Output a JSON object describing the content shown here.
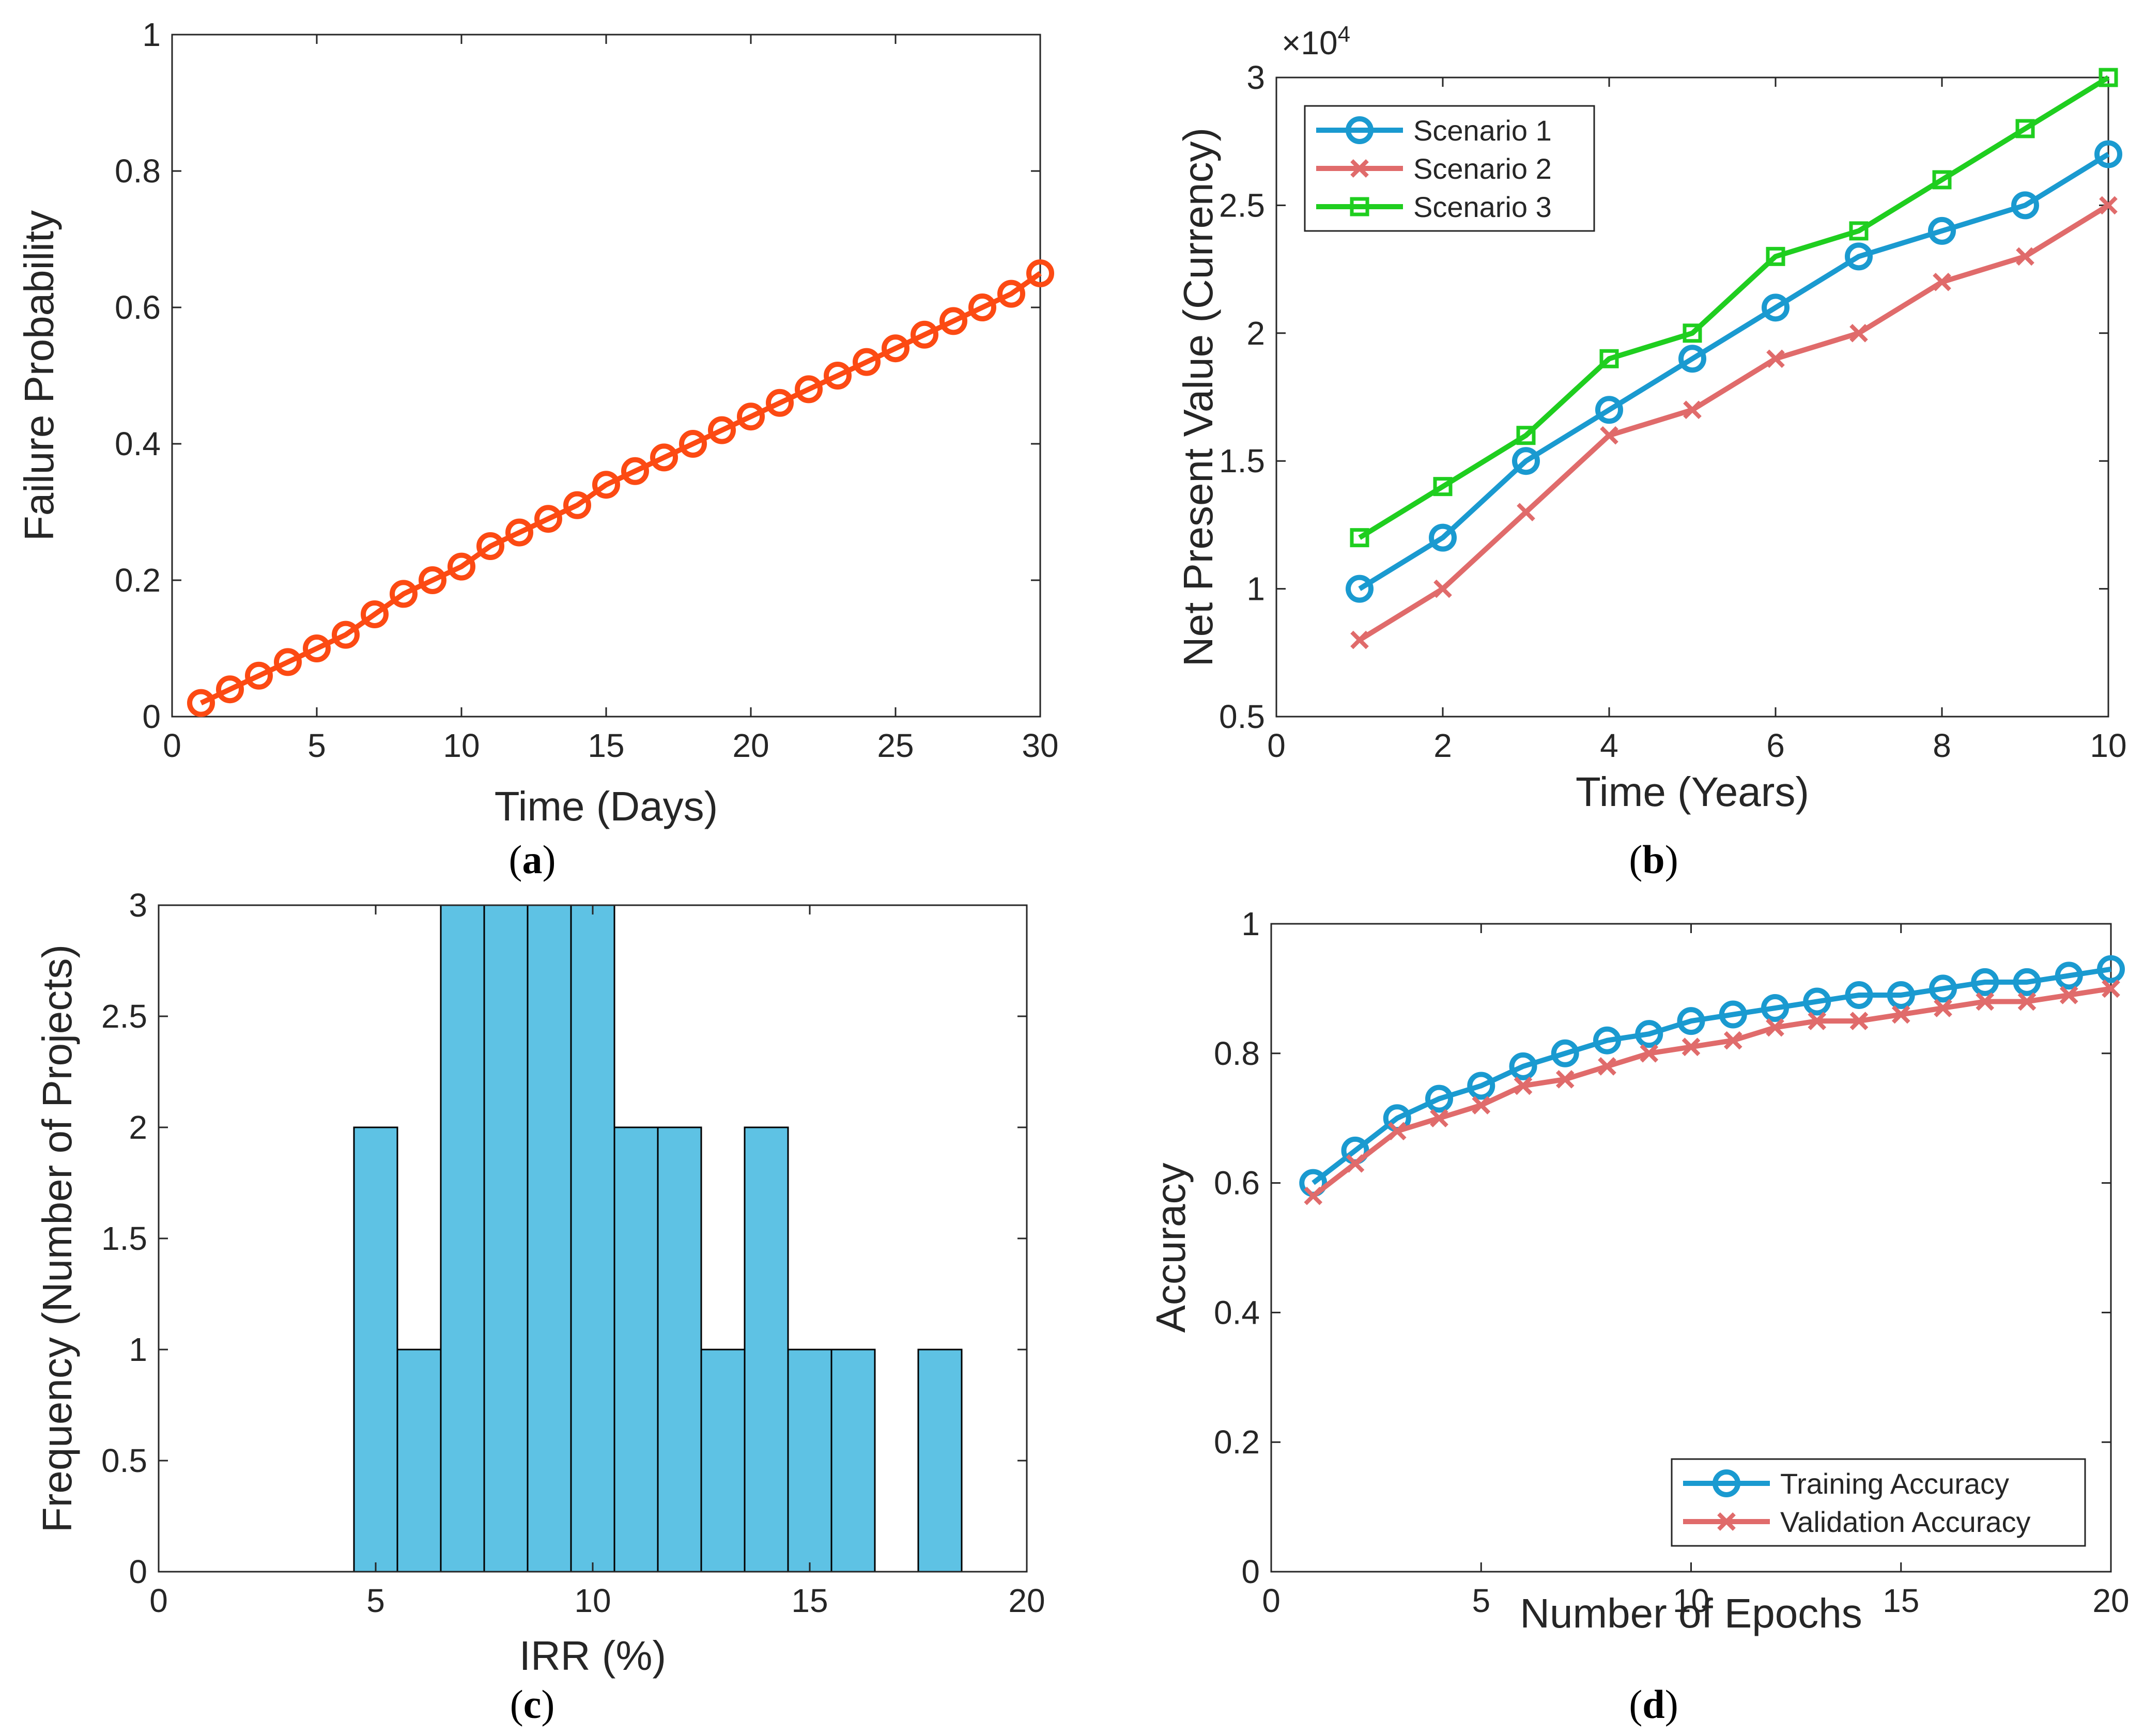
{
  "chart_data": [
    {
      "panel": "a",
      "caption_letter": "a",
      "type": "line",
      "title": "",
      "xlabel": "Time (Days)",
      "ylabel": "Failure Probability",
      "xlim": [
        0,
        30
      ],
      "ylim": [
        0,
        1
      ],
      "xticks": [
        0,
        5,
        10,
        15,
        20,
        25,
        30
      ],
      "xtick_labels": [
        "0",
        "5",
        "10",
        "15",
        "20",
        "25",
        "30"
      ],
      "yticks": [
        0,
        0.2,
        0.4,
        0.6,
        0.8,
        1
      ],
      "ytick_labels": [
        "0",
        "0.2",
        "0.4",
        "0.6",
        "0.8",
        "1"
      ],
      "grid": false,
      "legend": null,
      "series": [
        {
          "name": "Failure Probability",
          "color": "#fc4a13",
          "marker": "circle",
          "x": [
            1,
            2,
            3,
            4,
            5,
            6,
            7,
            8,
            9,
            10,
            11,
            12,
            13,
            14,
            15,
            16,
            17,
            18,
            19,
            20,
            21,
            22,
            23,
            24,
            25,
            26,
            27,
            28,
            29,
            30
          ],
          "values": [
            0.02,
            0.04,
            0.06,
            0.08,
            0.1,
            0.12,
            0.15,
            0.18,
            0.2,
            0.22,
            0.25,
            0.27,
            0.29,
            0.31,
            0.34,
            0.36,
            0.38,
            0.4,
            0.42,
            0.44,
            0.46,
            0.48,
            0.5,
            0.52,
            0.54,
            0.56,
            0.58,
            0.6,
            0.62,
            0.65
          ]
        }
      ]
    },
    {
      "panel": "b",
      "caption_letter": "b",
      "type": "line",
      "title": "",
      "xlabel": "Time (Years)",
      "ylabel": "Net Present Value (Currency)",
      "exponent_label": "×10",
      "exponent_power": "4",
      "value_multiplier": 10000,
      "xlim": [
        0,
        10
      ],
      "ylim": [
        0.5,
        3
      ],
      "xticks": [
        0,
        2,
        4,
        6,
        8,
        10
      ],
      "xtick_labels": [
        "0",
        "2",
        "4",
        "6",
        "8",
        "10"
      ],
      "yticks": [
        0.5,
        1,
        1.5,
        2,
        2.5,
        3
      ],
      "ytick_labels": [
        "0.5",
        "1",
        "1.5",
        "2",
        "2.5",
        "3"
      ],
      "grid": false,
      "legend": "top-left",
      "series": [
        {
          "name": "Scenario 1",
          "color": "#1a9ad0",
          "marker": "circle",
          "x": [
            1,
            2,
            3,
            4,
            5,
            6,
            7,
            8,
            9,
            10
          ],
          "values": [
            1.0,
            1.2,
            1.5,
            1.7,
            1.9,
            2.1,
            2.3,
            2.4,
            2.5,
            2.7
          ]
        },
        {
          "name": "Scenario 2",
          "color": "#e06b6b",
          "marker": "x",
          "x": [
            1,
            2,
            3,
            4,
            5,
            6,
            7,
            8,
            9,
            10
          ],
          "values": [
            0.8,
            1.0,
            1.3,
            1.6,
            1.7,
            1.9,
            2.0,
            2.2,
            2.3,
            2.5
          ]
        },
        {
          "name": "Scenario 3",
          "color": "#1fce1f",
          "marker": "square",
          "x": [
            1,
            2,
            3,
            4,
            5,
            6,
            7,
            8,
            9,
            10
          ],
          "values": [
            1.2,
            1.4,
            1.6,
            1.9,
            2.0,
            2.3,
            2.4,
            2.6,
            2.8,
            3.0
          ]
        }
      ]
    },
    {
      "panel": "c",
      "caption_letter": "c",
      "type": "bar",
      "title": "",
      "xlabel": "IRR (%)",
      "ylabel": "Frequency (Number of Projects)",
      "xlim": [
        0,
        20
      ],
      "ylim": [
        0,
        3
      ],
      "xticks": [
        0,
        5,
        10,
        15,
        20
      ],
      "xtick_labels": [
        "0",
        "5",
        "10",
        "15",
        "20"
      ],
      "yticks": [
        0,
        0.5,
        1,
        1.5,
        2,
        2.5,
        3
      ],
      "ytick_labels": [
        "0",
        "0.5",
        "1",
        "1.5",
        "2",
        "2.5",
        "3"
      ],
      "grid": false,
      "legend": null,
      "bin_width": 1,
      "color": "#5ec2e4",
      "edge_color": "#000000",
      "bins": [
        {
          "start": 4.5,
          "end": 5.5,
          "value": 2
        },
        {
          "start": 5.5,
          "end": 6.5,
          "value": 1
        },
        {
          "start": 6.5,
          "end": 7.5,
          "value": 3
        },
        {
          "start": 7.5,
          "end": 8.5,
          "value": 3
        },
        {
          "start": 8.5,
          "end": 9.5,
          "value": 3
        },
        {
          "start": 9.5,
          "end": 10.5,
          "value": 3
        },
        {
          "start": 10.5,
          "end": 11.5,
          "value": 2
        },
        {
          "start": 11.5,
          "end": 12.5,
          "value": 2
        },
        {
          "start": 12.5,
          "end": 13.5,
          "value": 1
        },
        {
          "start": 13.5,
          "end": 14.5,
          "value": 2
        },
        {
          "start": 14.5,
          "end": 15.5,
          "value": 1
        },
        {
          "start": 15.5,
          "end": 16.5,
          "value": 1
        },
        {
          "start": 17.5,
          "end": 18.5,
          "value": 1
        }
      ]
    },
    {
      "panel": "d",
      "caption_letter": "d",
      "type": "line",
      "title": "",
      "xlabel": "Number of Epochs",
      "ylabel": "Accuracy",
      "xlim": [
        0,
        20
      ],
      "ylim": [
        0,
        1
      ],
      "xticks": [
        0,
        5,
        10,
        15,
        20
      ],
      "xtick_labels": [
        "0",
        "5",
        "10",
        "15",
        "20"
      ],
      "yticks": [
        0,
        0.2,
        0.4,
        0.6,
        0.8,
        1
      ],
      "ytick_labels": [
        "0",
        "0.2",
        "0.4",
        "0.6",
        "0.8",
        "1"
      ],
      "grid": false,
      "legend": "bottom-right",
      "series": [
        {
          "name": "Training Accuracy",
          "color": "#1a9ad0",
          "marker": "circle",
          "x": [
            1,
            2,
            3,
            4,
            5,
            6,
            7,
            8,
            9,
            10,
            11,
            12,
            13,
            14,
            15,
            16,
            17,
            18,
            19,
            20
          ],
          "values": [
            0.6,
            0.65,
            0.7,
            0.73,
            0.75,
            0.78,
            0.8,
            0.82,
            0.83,
            0.85,
            0.86,
            0.87,
            0.88,
            0.89,
            0.89,
            0.9,
            0.91,
            0.91,
            0.92,
            0.93
          ]
        },
        {
          "name": "Validation Accuracy",
          "color": "#e06b6b",
          "marker": "x",
          "x": [
            1,
            2,
            3,
            4,
            5,
            6,
            7,
            8,
            9,
            10,
            11,
            12,
            13,
            14,
            15,
            16,
            17,
            18,
            19,
            20
          ],
          "values": [
            0.58,
            0.63,
            0.68,
            0.7,
            0.72,
            0.75,
            0.76,
            0.78,
            0.8,
            0.81,
            0.82,
            0.84,
            0.85,
            0.85,
            0.86,
            0.87,
            0.88,
            0.88,
            0.89,
            0.9
          ]
        }
      ]
    }
  ]
}
